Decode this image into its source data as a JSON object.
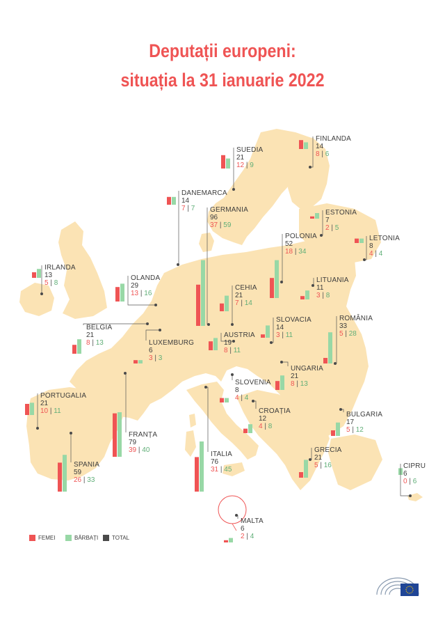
{
  "title_line1": "Deputații europeni:",
  "title_line2": "situația la 31 ianuarie 2022",
  "legend": {
    "women": "FEMEI",
    "men": "BĂRBAȚI",
    "total": "TOTAL"
  },
  "colors": {
    "women": "#ef5454",
    "men": "#98d8a6",
    "total": "#4a4a4a",
    "map": "#fbe3b4",
    "title": "#ef5454"
  },
  "chart_data": {
    "type": "bar",
    "title": "Deputații europeni: situația la 31 ianuarie 2022",
    "series": [
      {
        "name": "FEMEI"
      },
      {
        "name": "BĂRBAȚI"
      }
    ],
    "countries": [
      {
        "name": "FINLANDA",
        "total": 14,
        "women": 8,
        "men": 6
      },
      {
        "name": "SUEDIA",
        "total": 21,
        "women": 12,
        "men": 9
      },
      {
        "name": "DANEMARCA",
        "total": 14,
        "women": 7,
        "men": 7
      },
      {
        "name": "GERMANIA",
        "total": 96,
        "women": 37,
        "men": 59
      },
      {
        "name": "ESTONIA",
        "total": 7,
        "women": 2,
        "men": 5
      },
      {
        "name": "LETONIA",
        "total": 8,
        "women": 4,
        "men": 4
      },
      {
        "name": "POLONIA",
        "total": 52,
        "women": 18,
        "men": 34
      },
      {
        "name": "IRLANDA",
        "total": 13,
        "women": 5,
        "men": 8
      },
      {
        "name": "LITUANIA",
        "total": 11,
        "women": 3,
        "men": 8
      },
      {
        "name": "OLANDA",
        "total": 29,
        "women": 13,
        "men": 16
      },
      {
        "name": "CEHIA",
        "total": 21,
        "women": 7,
        "men": 14
      },
      {
        "name": "SLOVACIA",
        "total": 14,
        "women": 3,
        "men": 11
      },
      {
        "name": "ROMÂNIA",
        "total": 33,
        "women": 5,
        "men": 28
      },
      {
        "name": "BELGIA",
        "total": 21,
        "women": 8,
        "men": 13
      },
      {
        "name": "LUXEMBURG",
        "total": 6,
        "women": 3,
        "men": 3
      },
      {
        "name": "AUSTRIA",
        "total": 19,
        "women": 8,
        "men": 11
      },
      {
        "name": "UNGARIA",
        "total": 21,
        "women": 8,
        "men": 13
      },
      {
        "name": "SLOVENIA",
        "total": 8,
        "women": 4,
        "men": 4
      },
      {
        "name": "PORTUGALIA",
        "total": 21,
        "women": 10,
        "men": 11
      },
      {
        "name": "CROAȚIA",
        "total": 12,
        "women": 4,
        "men": 8
      },
      {
        "name": "BULGARIA",
        "total": 17,
        "women": 5,
        "men": 12
      },
      {
        "name": "FRANȚA",
        "total": 79,
        "women": 39,
        "men": 40
      },
      {
        "name": "SPANIA",
        "total": 59,
        "women": 26,
        "men": 33
      },
      {
        "name": "ITALIA",
        "total": 76,
        "women": 31,
        "men": 45
      },
      {
        "name": "GRECIA",
        "total": 21,
        "women": 5,
        "men": 16
      },
      {
        "name": "CIPRU",
        "total": 6,
        "women": 0,
        "men": 6
      },
      {
        "name": "MALTA",
        "total": 6,
        "women": 2,
        "men": 4
      }
    ]
  }
}
